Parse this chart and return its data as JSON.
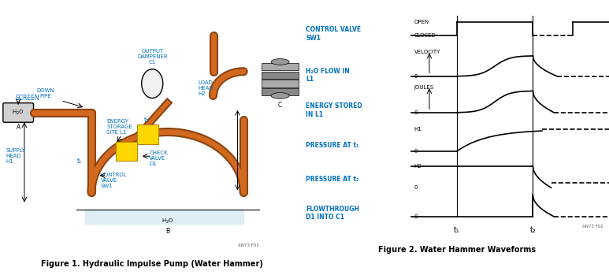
{
  "fig_width": 7.73,
  "fig_height": 3.49,
  "dpi": 100,
  "bg_color": "#ffffff",
  "label_color": "#0070c0",
  "line_color": "#000000",
  "fig1_caption": "Figure 1. Hydraulic Impulse Pump (Water Hammer)",
  "fig2_caption": "Figure 2. Water Hammer Waveforms",
  "waveform_labels_left": [
    "CONTROL VALVE\nSW1",
    "H₂O FLOW IN\nL1",
    "ENERGY STORED\nIN L1",
    "PRESSURE AT t₁",
    "PRESSURE AT t₂",
    "FLOWTHROUGH\nD1 INTO C1"
  ],
  "waveform_y_labels": [
    [
      "OPEN",
      "CLOSED"
    ],
    [
      "VELOCITY",
      "0"
    ],
    [
      "JOULES",
      "0"
    ],
    [
      "H1",
      "0"
    ],
    [
      "H2",
      "0"
    ],
    [
      "0"
    ]
  ],
  "t1_label": "t₁",
  "t2_label": "t₂",
  "watermark": "AN73 F02"
}
